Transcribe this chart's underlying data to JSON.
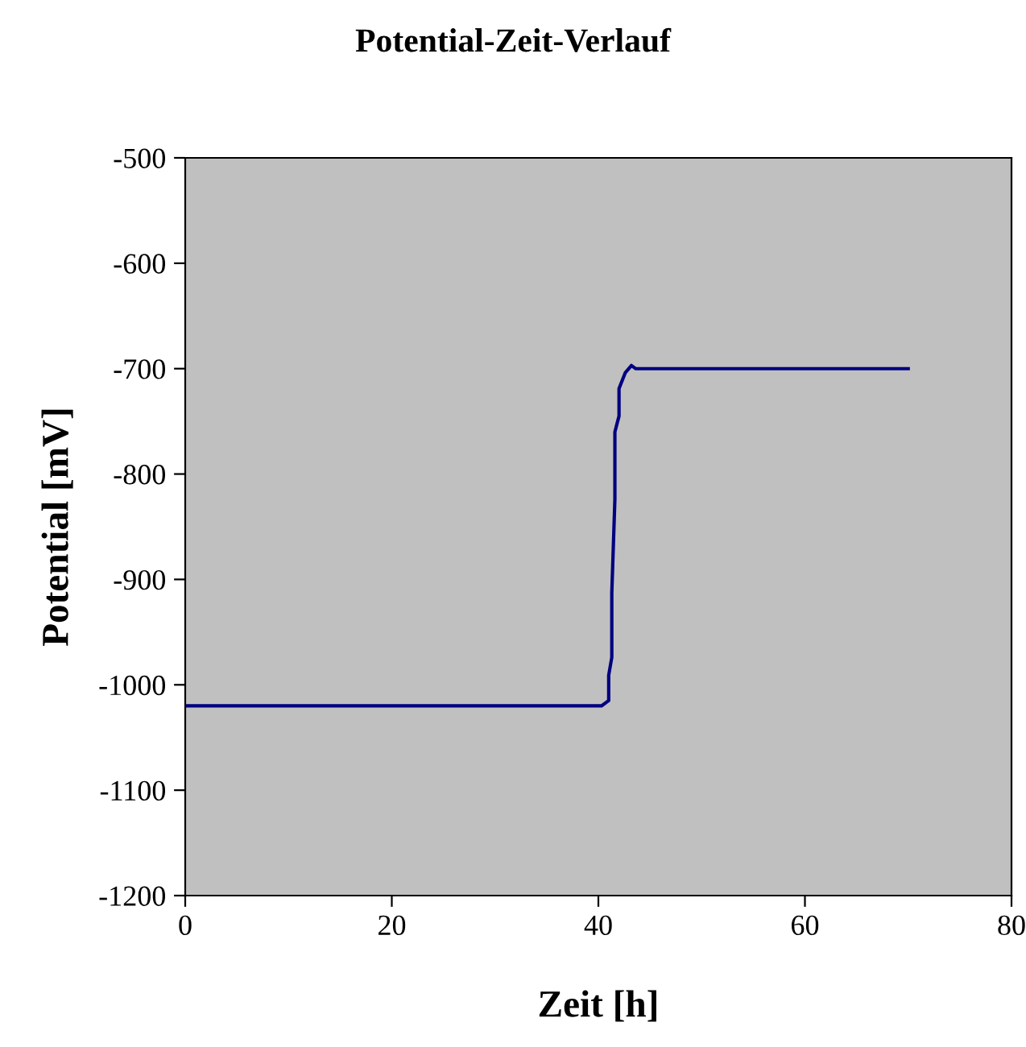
{
  "chart_data": {
    "type": "line",
    "title": "Potential-Zeit-Verlauf",
    "xlabel": "Zeit [h]",
    "ylabel": "Potential [mV]",
    "series": [
      {
        "color": "#000080",
        "x": [
          0,
          40.3,
          41.0,
          41.0,
          41.3,
          41.3,
          41.6,
          41.6,
          42.0,
          42.0,
          42.6,
          43.2,
          43.6,
          70
        ],
        "values": [
          -1020,
          -1020,
          -1015,
          -991,
          -974,
          -913,
          -824,
          -760,
          -745,
          -719,
          -704,
          -697,
          -700,
          -700
        ]
      }
    ],
    "xlim": [
      0,
      80
    ],
    "xticks": [
      0,
      20,
      40,
      60,
      80
    ],
    "ylim": [
      -1200,
      -500
    ],
    "yticks": [
      -1200,
      -1100,
      -1000,
      -900,
      -800,
      -700,
      -600,
      -500
    ],
    "grid": false,
    "legend": false,
    "marker": "none",
    "line_style": "solid"
  }
}
